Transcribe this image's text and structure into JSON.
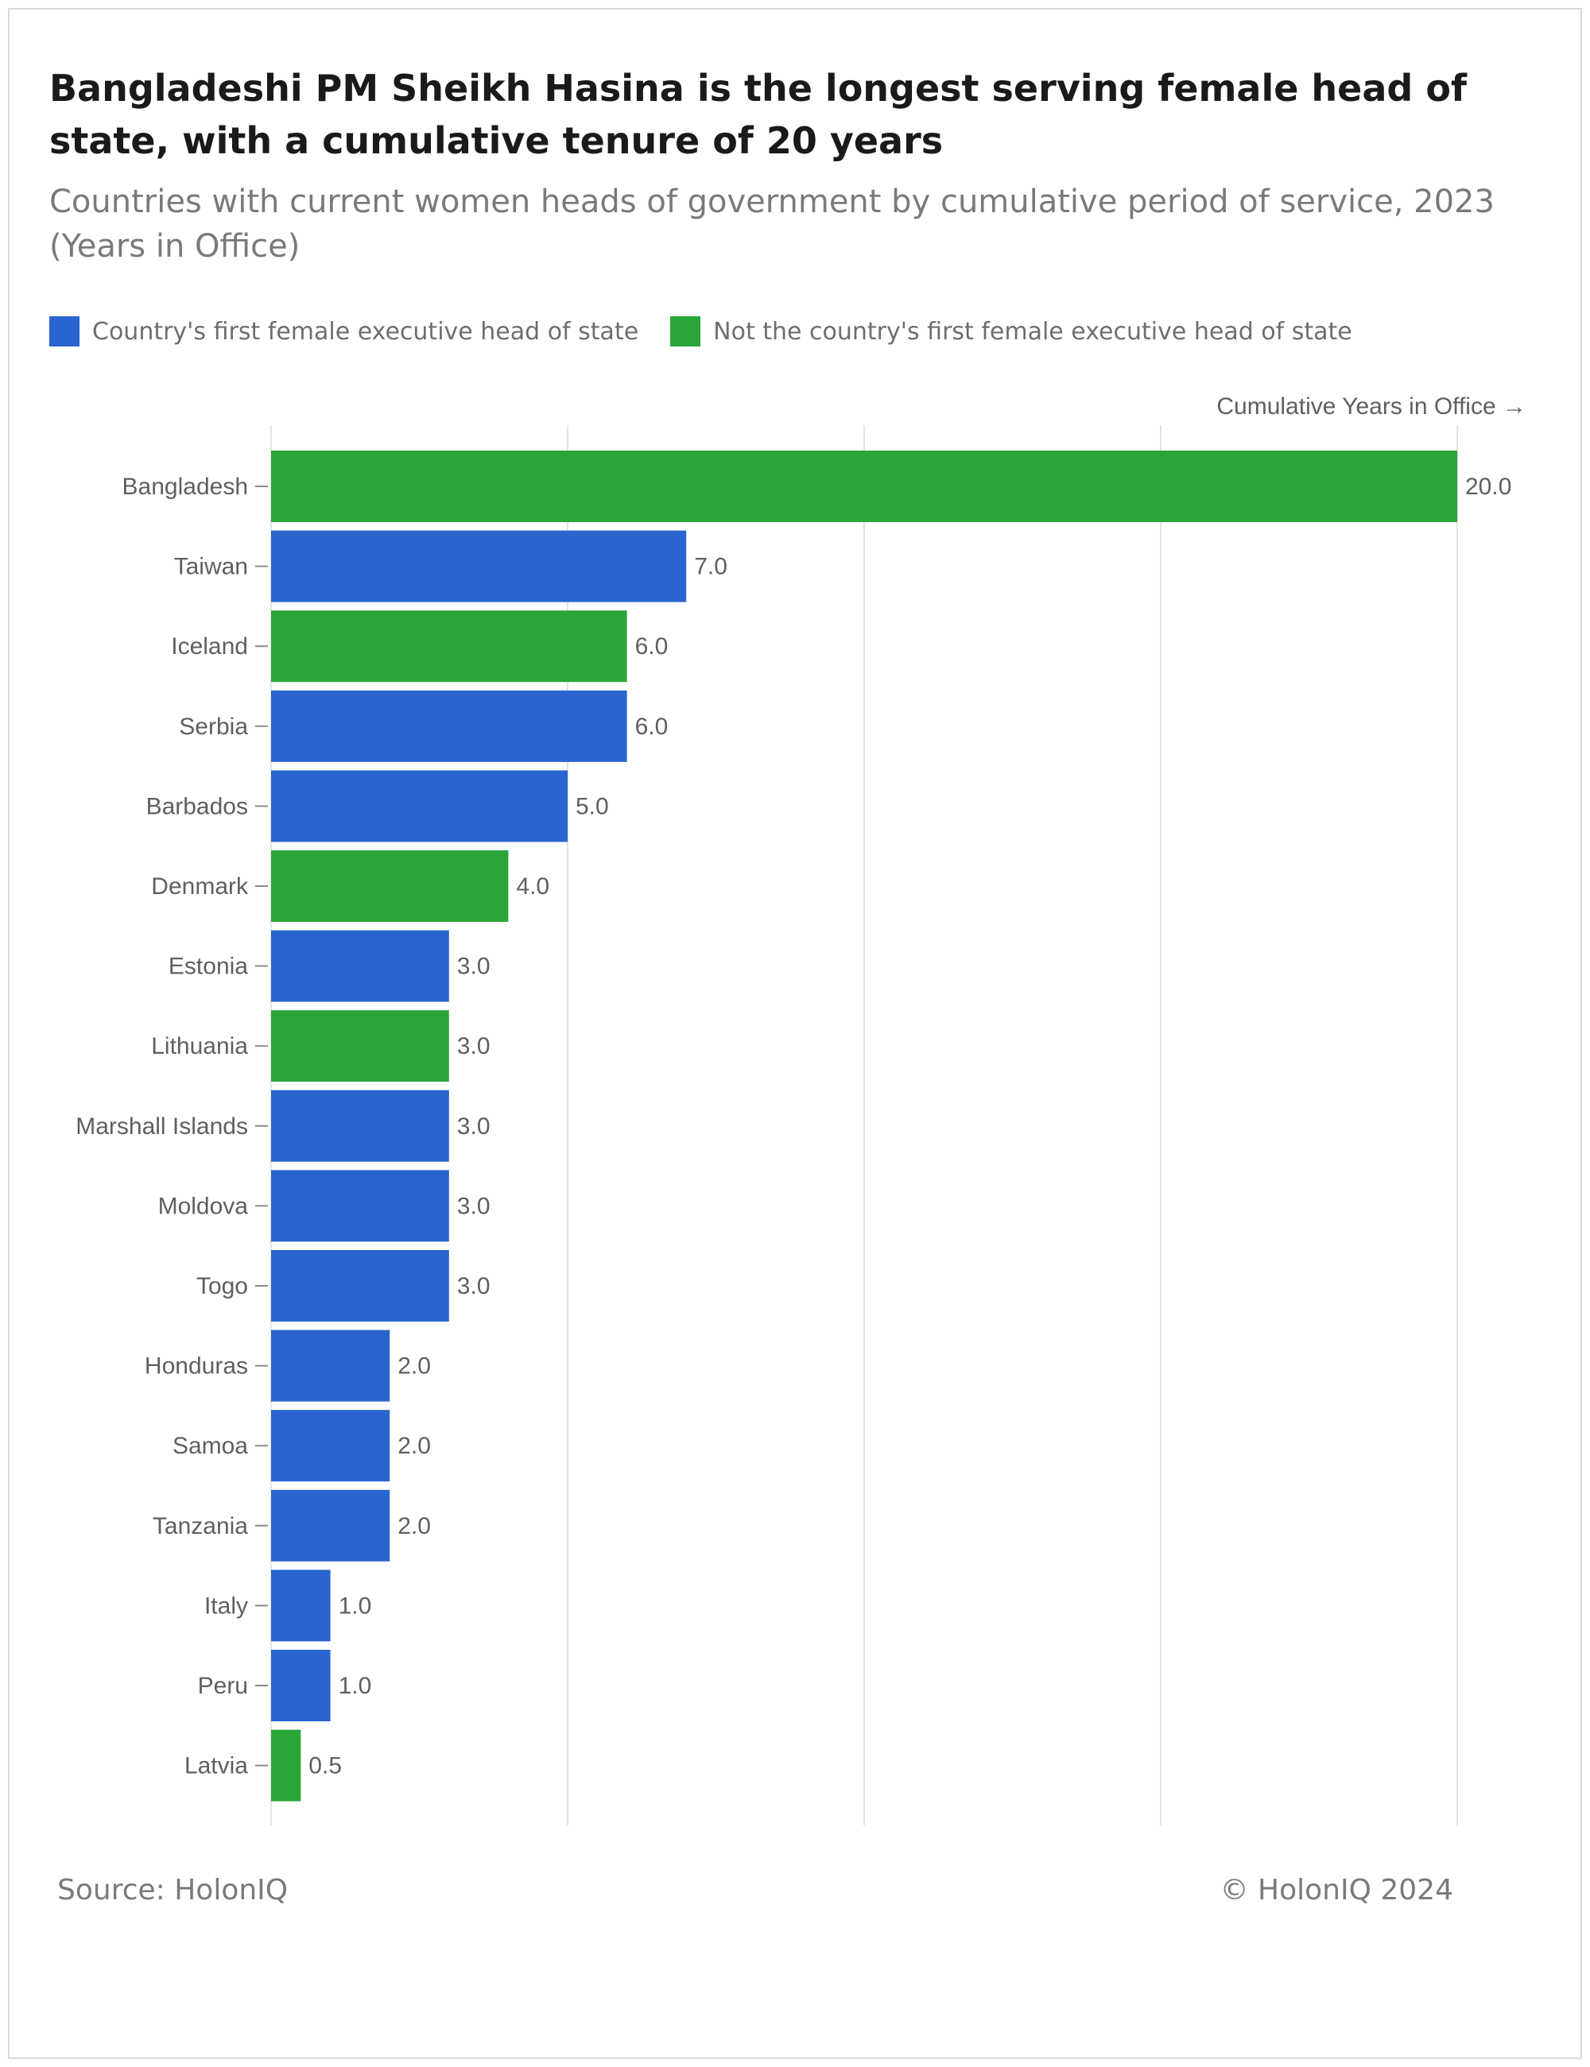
{
  "title": "Bangladeshi PM Sheikh Hasina is the longest serving female head of state, with a cumulative tenure of 20 years",
  "subtitle": "Countries with current women heads of government by cumulative period of service, 2023 (Years in Office)",
  "legend": [
    {
      "label": "Country's first female executive head of state",
      "color": "#2a64cf"
    },
    {
      "label": "Not the country's first female executive head of state",
      "color": "#2aa638"
    }
  ],
  "source": "Source: HolonIQ",
  "copyright": "© HolonIQ 2024",
  "chart_data": {
    "type": "bar",
    "orientation": "horizontal",
    "x_axis_label": "Cumulative Years in Office →",
    "xlim": [
      0,
      20
    ],
    "grid": true,
    "legend_position": "top-left",
    "categories": [
      "Bangladesh",
      "Taiwan",
      "Iceland",
      "Serbia",
      "Barbados",
      "Denmark",
      "Estonia",
      "Lithuania",
      "Marshall Islands",
      "Moldova",
      "Togo",
      "Honduras",
      "Samoa",
      "Tanzania",
      "Italy",
      "Peru",
      "Latvia"
    ],
    "values": [
      20.0,
      7.0,
      6.0,
      6.0,
      5.0,
      4.0,
      3.0,
      3.0,
      3.0,
      3.0,
      3.0,
      2.0,
      2.0,
      2.0,
      1.0,
      1.0,
      0.5
    ],
    "value_labels": [
      "20.0",
      "7.0",
      "6.0",
      "6.0",
      "5.0",
      "4.0",
      "3.0",
      "3.0",
      "3.0",
      "3.0",
      "3.0",
      "2.0",
      "2.0",
      "2.0",
      "1.0",
      "1.0",
      "0.5"
    ],
    "first_female": [
      false,
      true,
      false,
      true,
      true,
      false,
      true,
      false,
      true,
      true,
      true,
      true,
      true,
      true,
      true,
      true,
      false
    ],
    "colors": {
      "first": "#2a64cf",
      "not_first": "#2aa638",
      "grid": "#e3e3e3",
      "label": "#5f5f5f"
    }
  }
}
